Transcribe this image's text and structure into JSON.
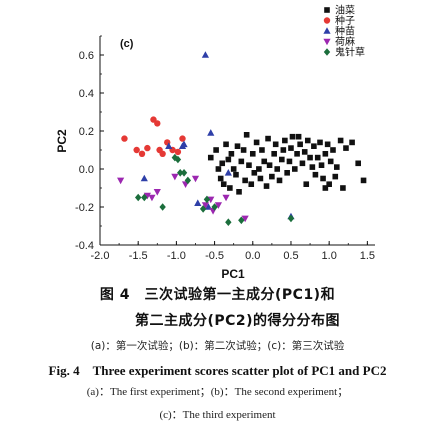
{
  "chart_data": {
    "type": "scatter",
    "panel_label": "(c)",
    "xlabel": "PC1",
    "ylabel": "PC2",
    "xlim": [
      -2.0,
      1.6
    ],
    "ylim": [
      -0.4,
      0.7
    ],
    "xticks": [
      "-2.0",
      "-1.5",
      "-1.0",
      "-0.5",
      "0.0",
      "0.5",
      "1.0",
      "1.5"
    ],
    "xtick_values": [
      -2.0,
      -1.5,
      -1.0,
      -0.5,
      0.0,
      0.5,
      1.0,
      1.5
    ],
    "yticks": [
      "-0.4",
      "-0.2",
      "0.0",
      "0.2",
      "0.4",
      "0.6"
    ],
    "ytick_values": [
      -0.4,
      -0.2,
      0.0,
      0.2,
      0.4,
      0.6
    ],
    "grid": false,
    "legend_position": "top-right",
    "series": [
      {
        "name": "油菜",
        "marker": "square",
        "color": "#111111",
        "points": [
          [
            -0.55,
            0.06
          ],
          [
            -0.48,
            0.1
          ],
          [
            -0.45,
            0.0
          ],
          [
            -0.42,
            -0.05
          ],
          [
            -0.4,
            0.03
          ],
          [
            -0.38,
            -0.08
          ],
          [
            -0.35,
            0.13
          ],
          [
            -0.32,
            0.05
          ],
          [
            -0.3,
            -0.1
          ],
          [
            -0.28,
            0.08
          ],
          [
            -0.25,
            0.0
          ],
          [
            -0.22,
            -0.03
          ],
          [
            -0.2,
            0.12
          ],
          [
            -0.18,
            -0.12
          ],
          [
            -0.15,
            0.04
          ],
          [
            -0.12,
            0.1
          ],
          [
            -0.1,
            -0.06
          ],
          [
            -0.08,
            0.18
          ],
          [
            -0.05,
            0.02
          ],
          [
            -0.02,
            -0.08
          ],
          [
            0.0,
            0.08
          ],
          [
            0.02,
            -0.02
          ],
          [
            0.05,
            0.14
          ],
          [
            0.08,
            0.0
          ],
          [
            0.1,
            -0.05
          ],
          [
            0.12,
            0.1
          ],
          [
            0.15,
            0.04
          ],
          [
            0.18,
            -0.09
          ],
          [
            0.2,
            0.16
          ],
          [
            0.22,
            0.02
          ],
          [
            0.25,
            -0.04
          ],
          [
            0.28,
            0.08
          ],
          [
            0.3,
            0.13
          ],
          [
            0.32,
            0.0
          ],
          [
            0.35,
            -0.06
          ],
          [
            0.38,
            0.05
          ],
          [
            0.4,
            0.1
          ],
          [
            0.42,
            0.15
          ],
          [
            0.45,
            -0.02
          ],
          [
            0.48,
            0.04
          ],
          [
            0.5,
            0.11
          ],
          [
            0.52,
            0.17
          ],
          [
            0.55,
            0.0
          ],
          [
            0.58,
            0.08
          ],
          [
            0.6,
            0.17
          ],
          [
            0.62,
            0.13
          ],
          [
            0.65,
            0.03
          ],
          [
            0.68,
            0.09
          ],
          [
            0.7,
            -0.08
          ],
          [
            0.72,
            0.15
          ],
          [
            0.75,
            0.06
          ],
          [
            0.78,
            0.01
          ],
          [
            0.8,
            0.12
          ],
          [
            0.82,
            -0.03
          ],
          [
            0.85,
            0.06
          ],
          [
            0.88,
            0.14
          ],
          [
            0.9,
            0.02
          ],
          [
            0.92,
            -0.05
          ],
          [
            0.95,
            0.08
          ],
          [
            0.98,
            0.13
          ],
          [
            1.0,
            -0.08
          ],
          [
            1.02,
            0.04
          ],
          [
            1.05,
            0.1
          ],
          [
            1.08,
            -0.04
          ],
          [
            1.1,
            0.01
          ],
          [
            1.15,
            0.15
          ],
          [
            1.22,
            0.11
          ],
          [
            1.3,
            0.14
          ],
          [
            1.38,
            0.03
          ],
          [
            1.45,
            -0.06
          ],
          [
            1.18,
            -0.1
          ],
          [
            0.95,
            -0.1
          ]
        ]
      },
      {
        "name": "种子",
        "marker": "circle",
        "color": "#e53935",
        "points": [
          [
            -1.68,
            0.16
          ],
          [
            -1.52,
            0.1
          ],
          [
            -1.45,
            0.08
          ],
          [
            -1.38,
            0.11
          ],
          [
            -1.3,
            0.26
          ],
          [
            -1.25,
            0.24
          ],
          [
            -1.22,
            0.1
          ],
          [
            -1.18,
            0.08
          ],
          [
            -1.12,
            0.14
          ],
          [
            -1.05,
            0.1
          ],
          [
            -0.98,
            0.09
          ],
          [
            -0.92,
            0.16
          ]
        ]
      },
      {
        "name": "种苗",
        "marker": "triangle-up",
        "color": "#2e3fa8",
        "points": [
          [
            -0.62,
            0.6
          ],
          [
            -1.42,
            -0.05
          ],
          [
            -1.1,
            0.12
          ],
          [
            -0.92,
            0.12
          ],
          [
            -0.9,
            0.13
          ],
          [
            -0.55,
            0.19
          ],
          [
            -0.32,
            -0.02
          ],
          [
            -0.72,
            -0.18
          ],
          [
            -0.58,
            -0.2
          ],
          [
            0.5,
            -0.25
          ]
        ]
      },
      {
        "name": "荷麻",
        "marker": "triangle-down",
        "color": "#9c27b0",
        "points": [
          [
            -1.73,
            -0.06
          ],
          [
            -1.38,
            -0.14
          ],
          [
            -1.32,
            -0.15
          ],
          [
            -1.25,
            -0.12
          ],
          [
            -1.02,
            -0.04
          ],
          [
            -0.88,
            -0.08
          ],
          [
            -0.75,
            -0.05
          ],
          [
            -0.62,
            -0.19
          ],
          [
            -0.55,
            -0.16
          ],
          [
            -0.52,
            -0.22
          ],
          [
            -0.45,
            -0.19
          ],
          [
            -0.35,
            -0.15
          ],
          [
            -0.1,
            -0.26
          ]
        ]
      },
      {
        "name": "鬼针草",
        "marker": "diamond",
        "color": "#1b6e3c",
        "points": [
          [
            -1.5,
            -0.15
          ],
          [
            -1.42,
            -0.15
          ],
          [
            -1.18,
            -0.2
          ],
          [
            -1.02,
            0.06
          ],
          [
            -0.98,
            0.05
          ],
          [
            -0.95,
            -0.02
          ],
          [
            -0.9,
            -0.02
          ],
          [
            -0.85,
            -0.06
          ],
          [
            -0.65,
            -0.21
          ],
          [
            -0.6,
            -0.16
          ],
          [
            -0.5,
            -0.2
          ],
          [
            -0.32,
            -0.28
          ],
          [
            -0.15,
            -0.27
          ],
          [
            0.5,
            -0.26
          ]
        ]
      }
    ]
  },
  "caption": {
    "cn_title": "图 4　三次试验第一主成分(PC1)和",
    "cn_title_2": "第二主成分(PC2)的得分分布图",
    "cn_sub": "(a)：第一次试验；(b)：第二次试验；(c)：第三次试验",
    "en_title": "Fig. 4　Three experiment scores scatter plot of PC1 and PC2",
    "en_sub_1": "(a)：The first experiment；(b)：The second experiment；",
    "en_sub_2": "(c)：The third experiment"
  }
}
